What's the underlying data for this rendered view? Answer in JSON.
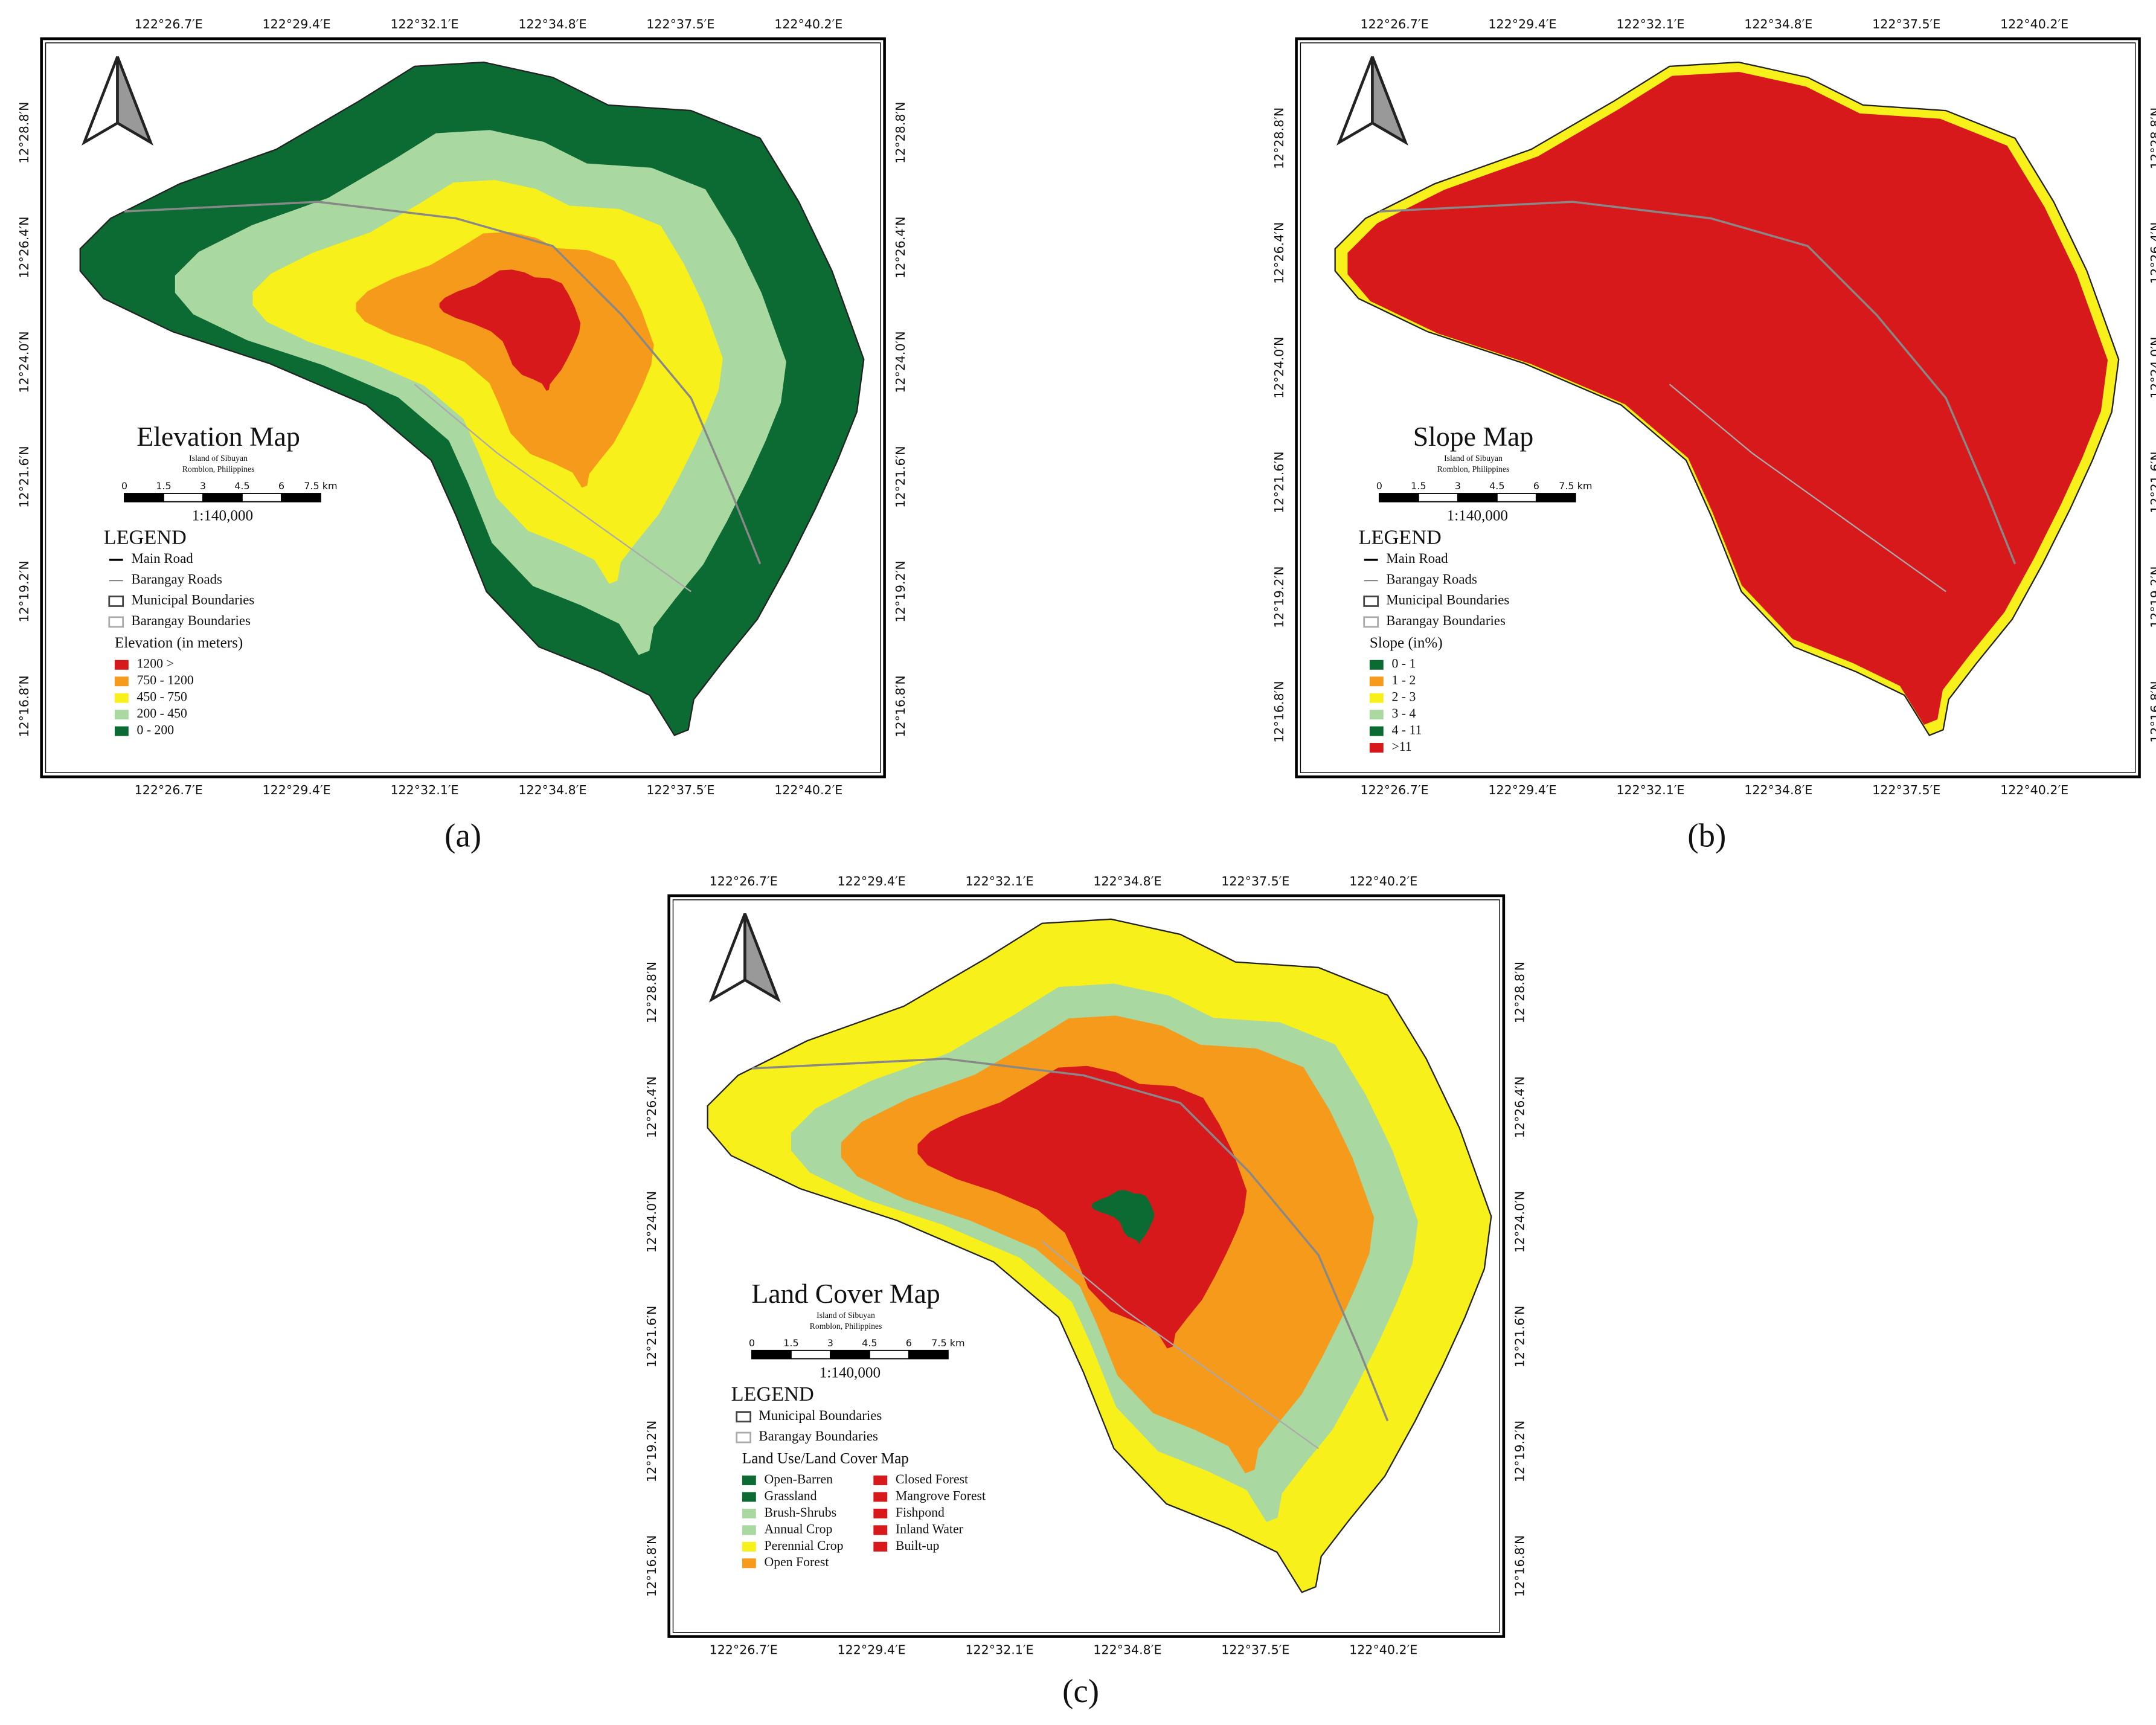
{
  "map_grid": {
    "longitude_labels": [
      "122°26.7′E",
      "122°29.4′E",
      "122°32.1′E",
      "122°34.8′E",
      "122°37.5′E",
      "122°40.2′E"
    ],
    "latitude_labels": [
      "12°28.8′N",
      "12°26.4′N",
      "12°24.0′N",
      "12°21.6′N",
      "12°19.2′N",
      "12°16.8′N"
    ]
  },
  "panels": [
    {
      "caption": "(a)",
      "title": "Elevation Map",
      "subtitle_lines": [
        "Island of Sibuyan",
        "Romblon, Philippines"
      ],
      "scale_labels": [
        "0",
        "1.5",
        "3",
        "4.5",
        "6",
        "7.5 km"
      ],
      "scale_ratio": "1:140,000",
      "legend_heading": "LEGEND",
      "legend_lines": [
        "Main Road",
        "Barangay Roads",
        "Municipal Boundaries",
        "Barangay Boundaries"
      ],
      "class_heading": "Elevation (in meters)",
      "classes": [
        {
          "label": "1200 >",
          "color": "#d7191c"
        },
        {
          "label": "750 - 1200",
          "color": "#f59a1b"
        },
        {
          "label": "450 - 750",
          "color": "#f7f01a"
        },
        {
          "label": "200 - 450",
          "color": "#a9d8a0"
        },
        {
          "label": "0 - 200",
          "color": "#0b6b33"
        }
      ]
    },
    {
      "caption": "(b)",
      "title": "Slope Map",
      "subtitle_lines": [
        "Island of Sibuyan",
        "Romblon, Philippines"
      ],
      "scale_labels": [
        "0",
        "1.5",
        "3",
        "4.5",
        "6",
        "7.5 km"
      ],
      "scale_ratio": "1:140,000",
      "legend_heading": "LEGEND",
      "legend_lines": [
        "Main Road",
        "Barangay Roads",
        "Municipal Boundaries",
        "Barangay Boundaries"
      ],
      "class_heading": "Slope (in%)",
      "classes": [
        {
          "label": "0 - 1",
          "color": "#0b6b33"
        },
        {
          "label": "1 - 2",
          "color": "#f59a1b"
        },
        {
          "label": "2 - 3",
          "color": "#f7f01a"
        },
        {
          "label": "3 - 4",
          "color": "#a9d8a0"
        },
        {
          "label": "4 - 11",
          "color": "#0b6b33"
        },
        {
          "label": ">11",
          "color": "#d7191c"
        }
      ]
    },
    {
      "caption": "(c)",
      "title": "Land Cover Map",
      "subtitle_lines": [
        "Island of Sibuyan",
        "Romblon, Philippines"
      ],
      "scale_labels": [
        "0",
        "1.5",
        "3",
        "4.5",
        "6",
        "7.5 km"
      ],
      "scale_ratio": "1:140,000",
      "legend_heading": "LEGEND",
      "legend_lines": [
        "Municipal Boundaries",
        "Barangay Boundaries"
      ],
      "class_heading": "Land Use/Land Cover Map",
      "classes": [
        {
          "label": "Open-Barren",
          "color": "#0b6b33"
        },
        {
          "label": "Grassland",
          "color": "#0b6b33"
        },
        {
          "label": "Brush-Shrubs",
          "color": "#a9d8a0"
        },
        {
          "label": "Annual Crop",
          "color": "#a9d8a0"
        },
        {
          "label": "Perennial Crop",
          "color": "#f7f01a"
        },
        {
          "label": "Open Forest",
          "color": "#f59a1b"
        },
        {
          "label": "Closed Forest",
          "color": "#d7191c"
        },
        {
          "label": "Mangrove Forest",
          "color": "#d7191c"
        },
        {
          "label": "Fishpond",
          "color": "#d7191c"
        },
        {
          "label": "Inland Water",
          "color": "#d7191c"
        },
        {
          "label": "Built-up",
          "color": "#d7191c"
        }
      ]
    }
  ]
}
